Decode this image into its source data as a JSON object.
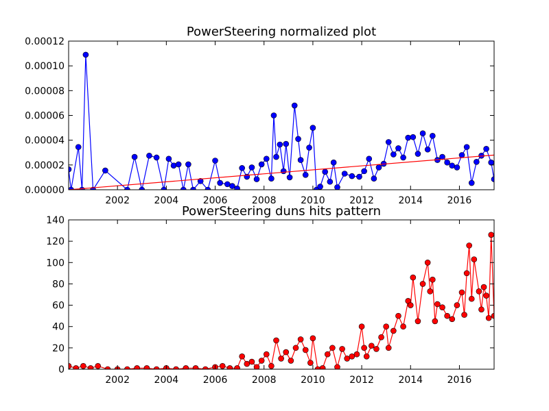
{
  "chart_data": [
    {
      "type": "line",
      "title": "PowerSteering normalized plot",
      "xlabel": "",
      "ylabel": "",
      "xlim": [
        2000.0,
        2017.42
      ],
      "ylim": [
        0,
        0.00012
      ],
      "xticks": [
        2002,
        2004,
        2006,
        2008,
        2010,
        2012,
        2014,
        2016
      ],
      "yticks": [
        "0.00000",
        "0.00002",
        "0.00004",
        "0.00006",
        "0.00008",
        "0.00010",
        "0.00012"
      ],
      "grid": false,
      "legend": "none",
      "series": [
        {
          "color": "#0000ff",
          "marker": "circle",
          "x": [
            2000.0,
            2000.1,
            2000.4,
            2000.55,
            2000.7,
            2001.0,
            2001.5,
            2002.4,
            2002.7,
            2003.0,
            2003.3,
            2003.6,
            2003.9,
            2004.1,
            2004.3,
            2004.5,
            2004.7,
            2004.9,
            2005.1,
            2005.4,
            2005.7,
            2006.0,
            2006.2,
            2006.5,
            2006.7,
            2006.9,
            2007.1,
            2007.3,
            2007.5,
            2007.7,
            2007.9,
            2008.1,
            2008.3,
            2008.4,
            2008.5,
            2008.65,
            2008.8,
            2008.9,
            2009.05,
            2009.25,
            2009.4,
            2009.5,
            2009.7,
            2009.85,
            2010.0,
            2010.15,
            2010.3,
            2010.5,
            2010.7,
            2010.85,
            2011.0,
            2011.3,
            2011.6,
            2011.9,
            2012.1,
            2012.3,
            2012.5,
            2012.7,
            2012.9,
            2013.1,
            2013.3,
            2013.5,
            2013.7,
            2013.9,
            2014.1,
            2014.3,
            2014.5,
            2014.7,
            2014.9,
            2015.1,
            2015.3,
            2015.5,
            2015.7,
            2015.9,
            2016.1,
            2016.3,
            2016.5,
            2016.7,
            2016.9,
            2017.1,
            2017.3,
            2017.42
          ],
          "y": [
            1.65e-05,
            0.0,
            3.45e-05,
            0.0,
            0.000109,
            0.0,
            1.55e-05,
            0.0,
            2.65e-05,
            0.0,
            2.75e-05,
            2.6e-05,
            0.0,
            2.5e-05,
            1.95e-05,
            2.05e-05,
            0.0,
            2.05e-05,
            0.0,
            7e-06,
            0.0,
            2.35e-05,
            5.5e-06,
            4.5e-06,
            3e-06,
            1e-06,
            1.75e-05,
            1.05e-05,
            1.8e-05,
            8.5e-06,
            2.05e-05,
            2.5e-05,
            9e-06,
            6e-05,
            2.65e-05,
            3.65e-05,
            1.5e-05,
            3.7e-05,
            1e-05,
            6.8e-05,
            4.1e-05,
            2.4e-05,
            1.2e-05,
            3.4e-05,
            5e-05,
            0.0,
            2.5e-06,
            1.45e-05,
            6.5e-06,
            2.2e-05,
            2e-06,
            1.3e-05,
            1.1e-05,
            1.05e-05,
            1.5e-05,
            2.5e-05,
            9e-06,
            1.8e-05,
            2.1e-05,
            3.85e-05,
            2.85e-05,
            3.35e-05,
            2.6e-05,
            4.2e-05,
            4.25e-05,
            2.9e-05,
            4.55e-05,
            3.25e-05,
            4.35e-05,
            2.4e-05,
            2.65e-05,
            2.2e-05,
            1.95e-05,
            1.8e-05,
            2.8e-05,
            3.45e-05,
            5.5e-06,
            2.25e-05,
            2.75e-05,
            3.3e-05,
            2.2e-05,
            8.5e-06
          ]
        },
        {
          "color": "#ff0000",
          "marker": "none",
          "x": [
            2000.0,
            2017.42
          ],
          "y": [
            0.0,
            2.8e-05
          ]
        }
      ]
    },
    {
      "type": "line",
      "title": "PowerSteering duns hits pattern",
      "xlabel": "",
      "ylabel": "",
      "xlim": [
        2000.0,
        2017.42
      ],
      "ylim": [
        0,
        140
      ],
      "xticks": [
        2002,
        2004,
        2006,
        2008,
        2010,
        2012,
        2014,
        2016
      ],
      "yticks": [
        "0",
        "20",
        "40",
        "60",
        "80",
        "100",
        "120",
        "140"
      ],
      "grid": false,
      "legend": "none",
      "series": [
        {
          "color": "#ff0000",
          "marker": "circle",
          "x": [
            2000.0,
            2000.3,
            2000.6,
            2000.9,
            2001.2,
            2001.6,
            2002.0,
            2002.4,
            2002.8,
            2003.2,
            2003.6,
            2004.0,
            2004.4,
            2004.8,
            2005.2,
            2005.6,
            2006.0,
            2006.3,
            2006.6,
            2006.9,
            2007.1,
            2007.3,
            2007.5,
            2007.7,
            2007.9,
            2008.1,
            2008.3,
            2008.5,
            2008.7,
            2008.9,
            2009.1,
            2009.3,
            2009.5,
            2009.7,
            2009.9,
            2010.0,
            2010.2,
            2010.4,
            2010.6,
            2010.8,
            2011.0,
            2011.2,
            2011.4,
            2011.6,
            2011.8,
            2012.0,
            2012.1,
            2012.2,
            2012.4,
            2012.6,
            2012.8,
            2013.0,
            2013.1,
            2013.3,
            2013.5,
            2013.7,
            2013.9,
            2014.0,
            2014.1,
            2014.3,
            2014.5,
            2014.7,
            2014.8,
            2014.9,
            2015.0,
            2015.1,
            2015.3,
            2015.5,
            2015.7,
            2015.9,
            2016.1,
            2016.2,
            2016.3,
            2016.4,
            2016.5,
            2016.6,
            2016.8,
            2016.9,
            2017.0,
            2017.1,
            2017.2,
            2017.3,
            2017.42
          ],
          "y": [
            3,
            1,
            3,
            1,
            3,
            0,
            0,
            0,
            1,
            1,
            0,
            1,
            0,
            1,
            1,
            0,
            2,
            3,
            1,
            1,
            12,
            5,
            7,
            2,
            8,
            14,
            3,
            27,
            10,
            16,
            8,
            20,
            28,
            18,
            6,
            29,
            0,
            1,
            14,
            20,
            2,
            19,
            10,
            12,
            14,
            40,
            20,
            12,
            22,
            19,
            30,
            40,
            20,
            36,
            50,
            40,
            64,
            60,
            86,
            45,
            80,
            100,
            73,
            84,
            45,
            61,
            58,
            50,
            47,
            60,
            72,
            51,
            90,
            116,
            66,
            103,
            73,
            56,
            77,
            69,
            48,
            126,
            50
          ]
        }
      ]
    }
  ]
}
